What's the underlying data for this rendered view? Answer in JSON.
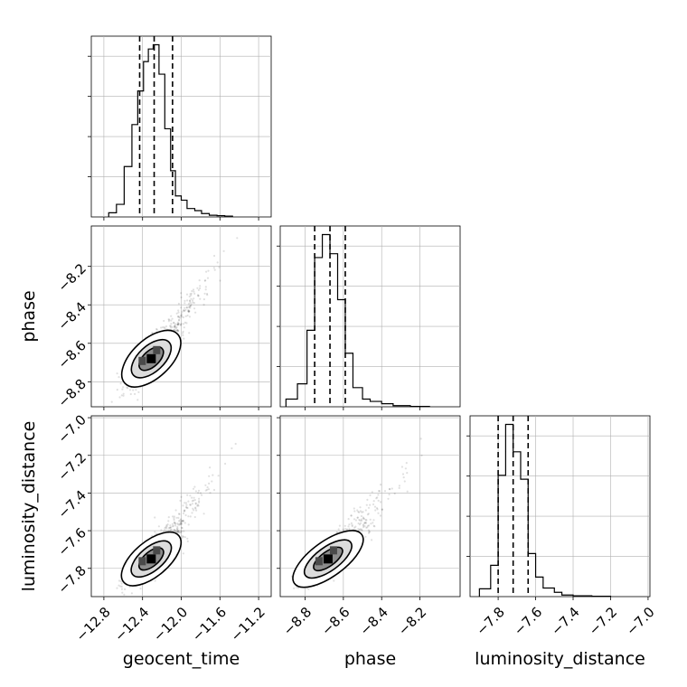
{
  "chart_data": {
    "type": "corner",
    "parameters": [
      "geocent_time",
      "phase",
      "luminosity_distance"
    ],
    "axis_labels": [
      "geocent_time",
      "phase",
      "luminosity_distance"
    ],
    "ranges": {
      "geocent_time": [
        -12.93,
        -11.07
      ],
      "phase": [
        -8.93,
        -7.99
      ],
      "luminosity_distance": [
        -7.95,
        -6.99
      ]
    },
    "ticks": {
      "geocent_time": [
        -12.8,
        -12.4,
        -12.0,
        -11.6,
        -11.2
      ],
      "phase": [
        -8.8,
        -8.6,
        -8.4,
        -8.2
      ],
      "luminosity_distance": [
        -7.8,
        -7.6,
        -7.4,
        -7.2,
        -7.0
      ]
    },
    "tick_labels": {
      "geocent_time": [
        "−12.8",
        "−12.4",
        "−12.0",
        "−11.6",
        "−11.2"
      ],
      "phase": [
        "−8.8",
        "−8.6",
        "−8.4",
        "−8.2"
      ],
      "luminosity_distance": [
        "−7.8",
        "−7.6",
        "−7.4",
        "−7.2",
        "−7.0"
      ]
    },
    "quantiles": {
      "geocent_time": [
        -12.43,
        -12.28,
        -12.09
      ],
      "phase": [
        -8.75,
        -8.67,
        -8.59
      ],
      "luminosity_distance": [
        -7.8,
        -7.72,
        -7.64
      ]
    },
    "histograms": {
      "geocent_time": {
        "edges": [
          -12.75,
          -12.67,
          -12.59,
          -12.51,
          -12.45,
          -12.39,
          -12.34,
          -12.29,
          -12.23,
          -12.17,
          -12.11,
          -12.06,
          -12.0,
          -11.94,
          -11.86,
          -11.79,
          -11.71,
          -11.63,
          -11.55,
          -11.47
        ],
        "counts": [
          1,
          3,
          12,
          22,
          30,
          37,
          40,
          41,
          34,
          21,
          11,
          5,
          4,
          2,
          1.5,
          0.8,
          0.4,
          0.3,
          0.2
        ]
      },
      "phase": {
        "edges": [
          -8.9,
          -8.84,
          -8.79,
          -8.75,
          -8.71,
          -8.67,
          -8.63,
          -8.59,
          -8.55,
          -8.5,
          -8.46,
          -8.4,
          -8.34,
          -8.25,
          -8.15
        ],
        "counts": [
          2,
          6,
          20,
          39,
          45,
          40,
          28,
          14,
          5,
          2,
          1.4,
          0.8,
          0.3,
          0.1
        ]
      },
      "luminosity_distance": {
        "edges": [
          -7.9,
          -7.84,
          -7.8,
          -7.76,
          -7.72,
          -7.68,
          -7.64,
          -7.6,
          -7.56,
          -7.5,
          -7.46,
          -7.4,
          -7.3,
          -7.2
        ],
        "counts": [
          2,
          8,
          31,
          44,
          37,
          30,
          11,
          5,
          2.2,
          1.1,
          0.4,
          0.2,
          0.1
        ]
      }
    },
    "density_2d": {
      "phase_vs_geocent_time": {
        "center": [
          -12.31,
          -8.68
        ],
        "sigma_x": 0.12,
        "sigma_y": 0.07,
        "rho": 0.8
      },
      "luminosity_distance_vs_geocent_time": {
        "center": [
          -12.31,
          -7.75
        ],
        "sigma_x": 0.12,
        "sigma_y": 0.065,
        "rho": 0.8
      },
      "luminosity_distance_vs_phase": {
        "center": [
          -8.68,
          -7.75
        ],
        "sigma_x": 0.07,
        "sigma_y": 0.065,
        "rho": 0.8
      }
    },
    "grid": true
  }
}
